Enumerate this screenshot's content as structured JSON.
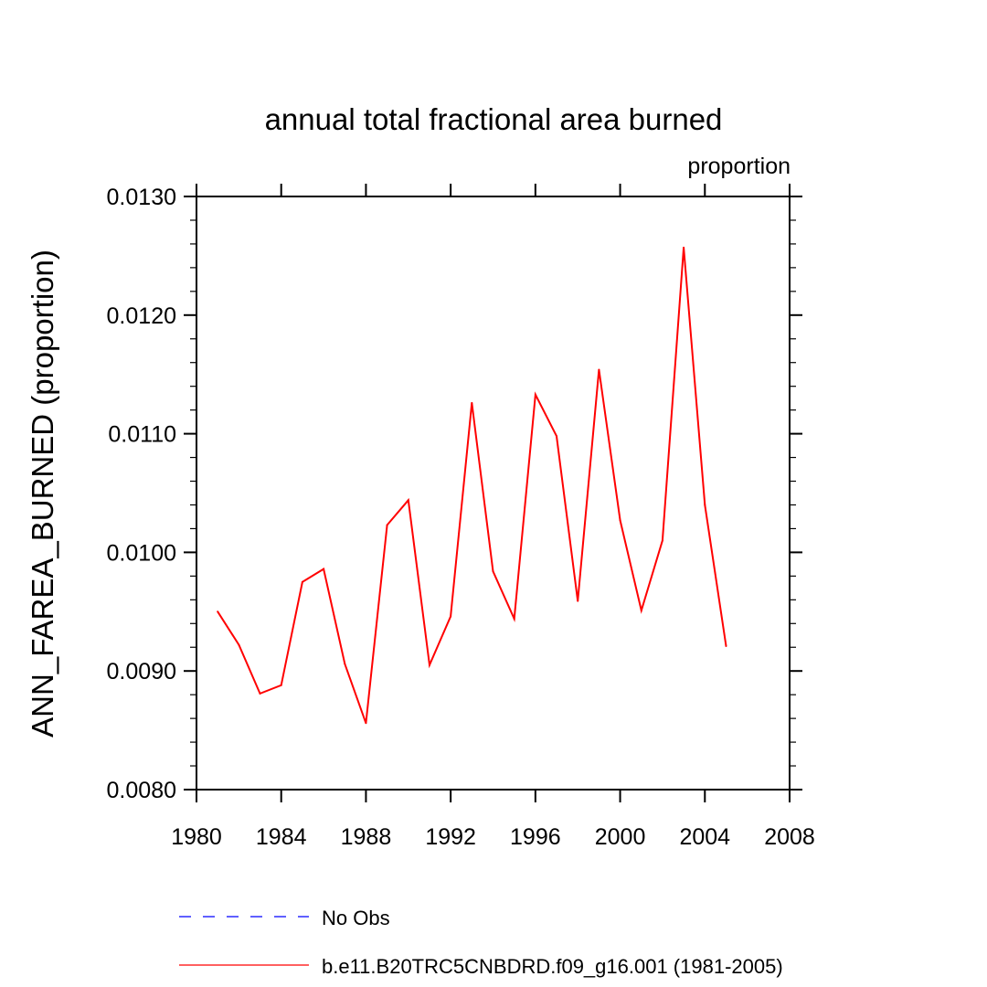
{
  "chart_data": {
    "type": "line",
    "title": "annual total fractional area burned",
    "units_label": "proportion",
    "xlabel": "",
    "ylabel": "ANN_FAREA_BURNED  (proportion)",
    "xlim": [
      1980,
      2008
    ],
    "ylim": [
      0.008,
      0.013
    ],
    "x_ticks": [
      1980,
      1984,
      1988,
      1992,
      1996,
      2000,
      2004,
      2008
    ],
    "x_tick_labels": [
      "1980",
      "1984",
      "1988",
      "1992",
      "1996",
      "2000",
      "2004",
      "2008"
    ],
    "y_ticks": [
      0.008,
      0.009,
      0.01,
      0.011,
      0.012,
      0.013
    ],
    "y_tick_labels": [
      "0.0080",
      "0.0090",
      "0.0100",
      "0.0110",
      "0.0120",
      "0.0130"
    ],
    "series": [
      {
        "name": "b.e11.B20TRC5CNBDRD.f09_g16.001 (1981-2005)",
        "color": "#ff0000",
        "style": "solid",
        "x": [
          1981,
          1982,
          1983,
          1984,
          1985,
          1986,
          1987,
          1988,
          1989,
          1990,
          1991,
          1992,
          1993,
          1994,
          1995,
          1996,
          1997,
          1998,
          1999,
          2000,
          2001,
          2002,
          2003,
          2004,
          2005
        ],
        "values": [
          0.0095,
          0.00922,
          0.00881,
          0.00888,
          0.00975,
          0.00986,
          0.00906,
          0.00856,
          0.01023,
          0.01044,
          0.00905,
          0.00946,
          0.01126,
          0.00984,
          0.00944,
          0.01133,
          0.01098,
          0.00959,
          0.01154,
          0.01027,
          0.00951,
          0.0101,
          0.01257,
          0.0104,
          0.00921
        ]
      }
    ],
    "legend": [
      {
        "label": "No Obs",
        "color": "#0000ff",
        "style": "dashed"
      },
      {
        "label": "b.e11.B20TRC5CNBDRD.f09_g16.001 (1981-2005)",
        "color": "#ff0000",
        "style": "solid"
      }
    ]
  }
}
